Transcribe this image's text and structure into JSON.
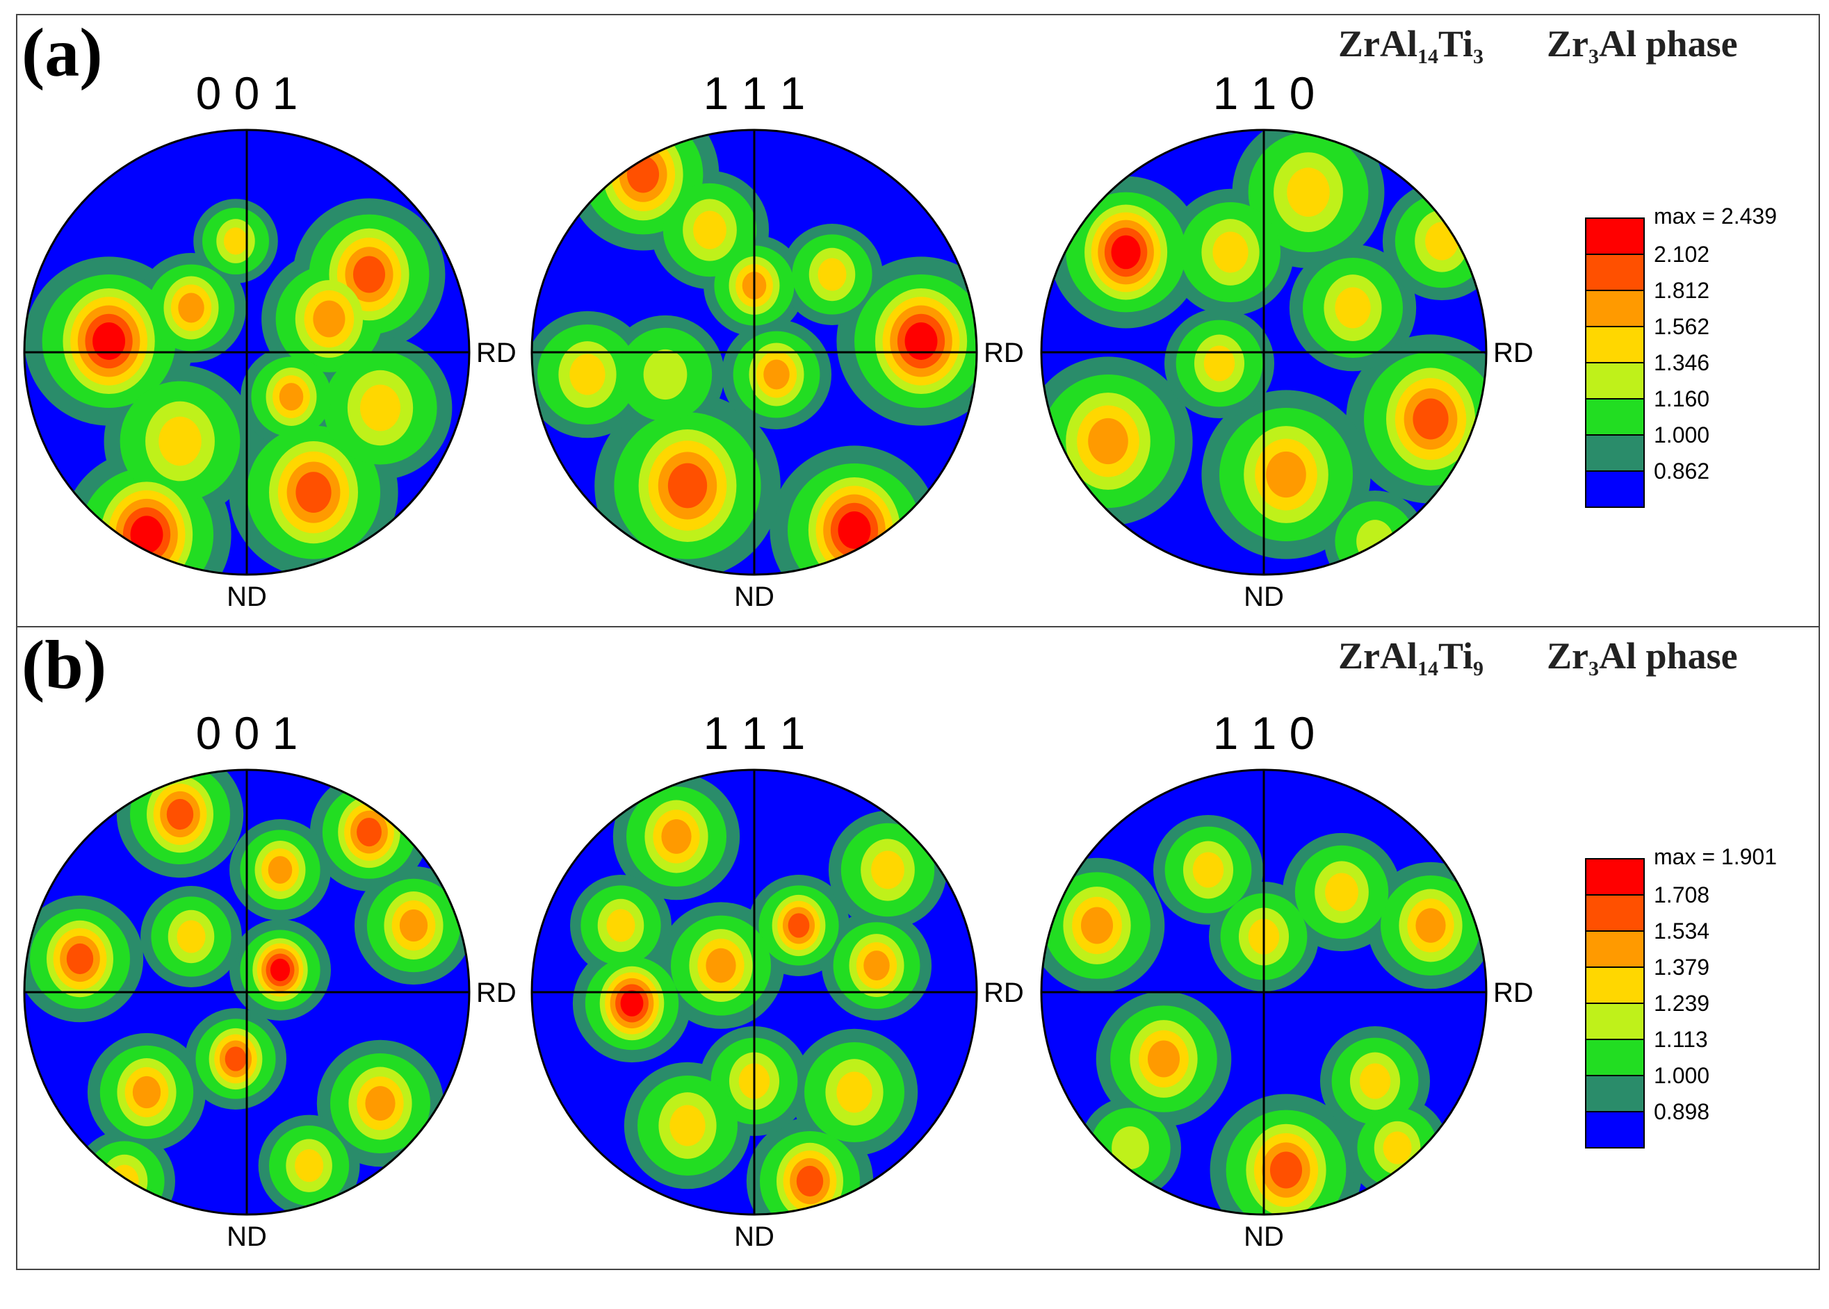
{
  "colors": {
    "levels": [
      "#0000ff",
      "#2a8c6a",
      "#22dd22",
      "#bff11a",
      "#ffd700",
      "#ff9a00",
      "#ff5000",
      "#ff0000"
    ],
    "axis": "#000000"
  },
  "chart_data": [
    {
      "type": "heatmap",
      "panel_label": "(a)",
      "phase_label": {
        "formula": "ZrAl",
        "sub1": "14",
        "mid": "Ti",
        "sub2": "3",
        "phase_prefix": "Zr",
        "phase_sub": "3",
        "phase_suffix": "Al phase"
      },
      "pole_figures": [
        {
          "title": "0 0 1",
          "x_axis": "RD",
          "y_axis": "ND",
          "hotspots": [
            [
              -0.62,
              0.05,
              0.2,
              6
            ],
            [
              -0.45,
              -0.82,
              0.2,
              6
            ],
            [
              0.55,
              0.35,
              0.18,
              5
            ],
            [
              0.3,
              -0.63,
              0.2,
              5
            ],
            [
              0.37,
              0.15,
              0.16,
              4
            ],
            [
              0.6,
              -0.25,
              0.17,
              3
            ],
            [
              -0.25,
              0.2,
              0.13,
              4
            ],
            [
              -0.3,
              -0.4,
              0.18,
              3
            ],
            [
              0.2,
              -0.2,
              0.12,
              4
            ],
            [
              -0.05,
              0.5,
              0.1,
              3
            ]
          ]
        },
        {
          "title": "1 1 1",
          "x_axis": "RD",
          "y_axis": "ND",
          "hotspots": [
            [
              -0.5,
              0.8,
              0.18,
              5
            ],
            [
              0.75,
              0.05,
              0.2,
              6
            ],
            [
              0.45,
              -0.8,
              0.2,
              6
            ],
            [
              -0.3,
              -0.6,
              0.22,
              5
            ],
            [
              0.0,
              0.3,
              0.12,
              4
            ],
            [
              -0.2,
              0.55,
              0.14,
              3
            ],
            [
              0.1,
              -0.1,
              0.13,
              4
            ],
            [
              -0.75,
              -0.1,
              0.15,
              3
            ],
            [
              0.35,
              0.35,
              0.12,
              3
            ],
            [
              -0.4,
              -0.1,
              0.14,
              2
            ]
          ]
        },
        {
          "title": "1 1 0",
          "x_axis": "RD",
          "y_axis": "ND",
          "hotspots": [
            [
              -0.62,
              0.45,
              0.18,
              6
            ],
            [
              0.75,
              -0.3,
              0.2,
              5
            ],
            [
              -0.7,
              -0.4,
              0.2,
              4
            ],
            [
              0.1,
              -0.55,
              0.2,
              4
            ],
            [
              0.2,
              0.72,
              0.18,
              3
            ],
            [
              -0.15,
              0.45,
              0.15,
              3
            ],
            [
              0.4,
              0.2,
              0.15,
              3
            ],
            [
              0.8,
              0.5,
              0.14,
              3
            ],
            [
              -0.2,
              -0.05,
              0.13,
              3
            ],
            [
              0.5,
              -0.85,
              0.12,
              2
            ]
          ]
        }
      ],
      "legend": {
        "max_label": "max = 2.439",
        "levels": [
          "2.102",
          "1.812",
          "1.562",
          "1.346",
          "1.160",
          "1.000",
          "0.862"
        ]
      }
    },
    {
      "type": "heatmap",
      "panel_label": "(b)",
      "phase_label": {
        "formula": "ZrAl",
        "sub1": "14",
        "mid": "Ti",
        "sub2": "9",
        "phase_prefix": "Zr",
        "phase_sub": "3",
        "phase_suffix": "Al phase"
      },
      "pole_figures": [
        {
          "title": "0 0 1",
          "x_axis": "RD",
          "y_axis": "ND",
          "hotspots": [
            [
              -0.3,
              0.8,
              0.15,
              5
            ],
            [
              0.55,
              0.72,
              0.14,
              5
            ],
            [
              0.15,
              0.1,
              0.12,
              6
            ],
            [
              -0.75,
              0.15,
              0.15,
              5
            ],
            [
              -0.05,
              -0.3,
              0.12,
              5
            ],
            [
              0.6,
              -0.5,
              0.15,
              4
            ],
            [
              -0.45,
              -0.45,
              0.14,
              4
            ],
            [
              0.15,
              0.55,
              0.12,
              4
            ],
            [
              -0.25,
              0.25,
              0.12,
              3
            ],
            [
              0.75,
              0.3,
              0.14,
              4
            ],
            [
              -0.55,
              -0.85,
              0.12,
              3
            ],
            [
              0.28,
              -0.78,
              0.12,
              3
            ]
          ]
        },
        {
          "title": "1 1 1",
          "x_axis": "RD",
          "y_axis": "ND",
          "hotspots": [
            [
              -0.55,
              -0.05,
              0.14,
              6
            ],
            [
              0.2,
              0.3,
              0.12,
              5
            ],
            [
              -0.35,
              0.7,
              0.15,
              4
            ],
            [
              -0.15,
              0.12,
              0.15,
              4
            ],
            [
              0.55,
              0.12,
              0.13,
              4
            ],
            [
              0.45,
              -0.45,
              0.15,
              3
            ],
            [
              0.25,
              -0.85,
              0.15,
              5
            ],
            [
              0.0,
              -0.4,
              0.13,
              3
            ],
            [
              -0.3,
              -0.6,
              0.15,
              3
            ],
            [
              0.6,
              0.55,
              0.14,
              3
            ],
            [
              -0.6,
              0.3,
              0.12,
              3
            ]
          ]
        },
        {
          "title": "1 1 0",
          "x_axis": "RD",
          "y_axis": "ND",
          "hotspots": [
            [
              0.1,
              -0.8,
              0.18,
              5
            ],
            [
              -0.75,
              0.3,
              0.16,
              4
            ],
            [
              -0.45,
              -0.3,
              0.16,
              4
            ],
            [
              0.75,
              0.3,
              0.15,
              4
            ],
            [
              0.0,
              0.25,
              0.13,
              3
            ],
            [
              0.35,
              0.45,
              0.14,
              3
            ],
            [
              -0.25,
              0.55,
              0.13,
              3
            ],
            [
              0.5,
              -0.4,
              0.13,
              3
            ],
            [
              0.6,
              -0.7,
              0.12,
              3
            ],
            [
              -0.6,
              -0.7,
              0.12,
              2
            ]
          ]
        }
      ],
      "legend": {
        "max_label": "max = 1.901",
        "levels": [
          "1.708",
          "1.534",
          "1.379",
          "1.239",
          "1.113",
          "1.000",
          "0.898"
        ]
      }
    }
  ]
}
